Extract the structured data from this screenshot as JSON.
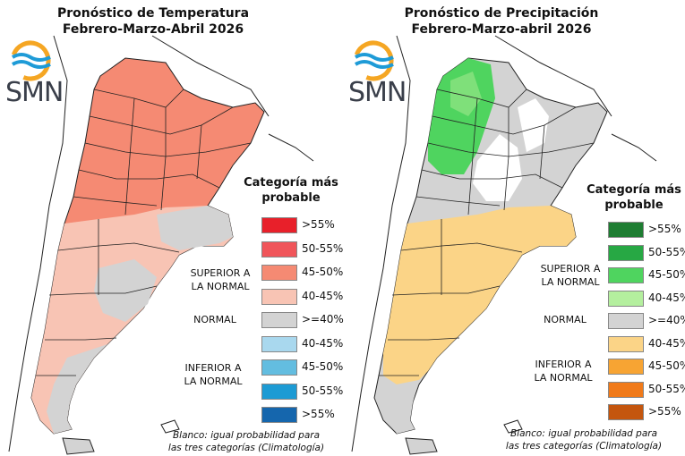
{
  "left": {
    "title_line1": "Pronóstico de Temperatura",
    "title_line2": "Febrero-Marzo-Abril 2026",
    "legend_title_1": "Categoría más",
    "legend_title_2": "probable",
    "legend": [
      {
        "label": ">55%",
        "color": "#e8202a"
      },
      {
        "label": "50-55%",
        "color": "#f0555a"
      },
      {
        "label": "45-50%",
        "color": "#f58a73"
      },
      {
        "label": "40-45%",
        "color": "#f8c4b4"
      },
      {
        "label": ">=40%",
        "color": "#d3d3d3"
      },
      {
        "label": "40-45%",
        "color": "#a9d8ee"
      },
      {
        "label": "45-50%",
        "color": "#63bde0"
      },
      {
        "label": "50-55%",
        "color": "#1d9bd4"
      },
      {
        "label": ">55%",
        "color": "#1566ad"
      }
    ],
    "cat_superior_1": "SUPERIOR A",
    "cat_superior_2": "LA NORMAL",
    "cat_normal": "NORMAL",
    "cat_inferior_1": "INFERIOR A",
    "cat_inferior_2": "LA NORMAL",
    "footnote_1": "Blanco: igual probabilidad para",
    "footnote_2": "las tres categorías (Climatología)"
  },
  "right": {
    "title_line1": "Pronóstico de Precipitación",
    "title_line2": "Febrero-Marzo-abril 2026",
    "legend_title_1": "Categoría más",
    "legend_title_2": "probable",
    "legend": [
      {
        "label": ">55%",
        "color": "#1e7d32"
      },
      {
        "label": "50-55%",
        "color": "#27a844"
      },
      {
        "label": "45-50%",
        "color": "#4fd45f"
      },
      {
        "label": "40-45%",
        "color": "#b4ef9e"
      },
      {
        "label": ">=40%",
        "color": "#d3d3d3"
      },
      {
        "label": "40-45%",
        "color": "#fbd487"
      },
      {
        "label": "45-50%",
        "color": "#f7a433"
      },
      {
        "label": "50-55%",
        "color": "#f07a1a"
      },
      {
        "label": ">55%",
        "color": "#c4560e"
      }
    ],
    "cat_superior_1": "SUPERIOR A",
    "cat_superior_2": "LA NORMAL",
    "cat_normal": "NORMAL",
    "cat_inferior_1": "INFERIOR A",
    "cat_inferior_2": "LA NORMAL",
    "footnote_1": "Blanco: igual probabilidad para",
    "footnote_2": "las tres categorías (Climatología)"
  },
  "logo_text": "SMN",
  "colors": {
    "logo_orange": "#f5a623",
    "logo_blue": "#1e9bd7",
    "coast": "#222222"
  }
}
